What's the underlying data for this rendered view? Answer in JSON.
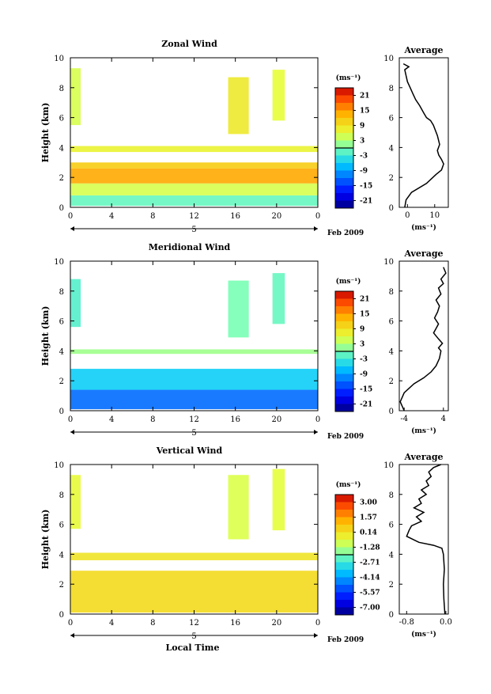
{
  "figure": {
    "date_label": "Feb 2009",
    "x_label": "Local Time",
    "y_label": "Height (km)",
    "unit_label": "(ms⁻¹)",
    "day_label": "5"
  },
  "chart_data": [
    {
      "type": "heatmap",
      "title": "Zonal Wind",
      "xlabel": "",
      "ylabel": "Height (km)",
      "xlim": [
        0,
        24
      ],
      "ylim": [
        0,
        10
      ],
      "x_ticks": [
        "0",
        "4",
        "8",
        "12",
        "16",
        "20",
        "0"
      ],
      "y_ticks": [
        "0",
        "2",
        "4",
        "6",
        "8",
        "10"
      ],
      "colorbar": {
        "unit": "(ms⁻¹)",
        "range": [
          -24,
          24
        ],
        "ticks": [
          "21",
          "15",
          "9",
          "3",
          "-3",
          "-9",
          "-15",
          "-21"
        ]
      },
      "bands": [
        {
          "x0": 0,
          "x1": 24,
          "y0": 0.1,
          "y1": 0.8,
          "value": -1
        },
        {
          "x0": 0,
          "x1": 24,
          "y0": 0.8,
          "y1": 1.6,
          "value": 5
        },
        {
          "x0": 0,
          "x1": 24,
          "y0": 1.6,
          "y1": 2.6,
          "value": 14
        },
        {
          "x0": 0,
          "x1": 24,
          "y0": 2.6,
          "y1": 3.0,
          "value": 11
        },
        {
          "x0": 0,
          "x1": 24,
          "y0": 3.7,
          "y1": 4.1,
          "value": 7
        },
        {
          "x0": 0,
          "x1": 1,
          "y0": 5.5,
          "y1": 9.3,
          "value": 5
        },
        {
          "x0": 15.3,
          "x1": 17.3,
          "y0": 4.9,
          "y1": 8.7,
          "value": 8
        },
        {
          "x0": 19.6,
          "x1": 20.8,
          "y0": 5.8,
          "y1": 9.2,
          "value": 6
        }
      ]
    },
    {
      "type": "heatmap",
      "title": "Meridional Wind",
      "xlabel": "",
      "ylabel": "Height (km)",
      "xlim": [
        0,
        24
      ],
      "ylim": [
        0,
        10
      ],
      "x_ticks": [
        "0",
        "4",
        "8",
        "12",
        "16",
        "20",
        "0"
      ],
      "y_ticks": [
        "0",
        "2",
        "4",
        "6",
        "8",
        "10"
      ],
      "colorbar": {
        "unit": "(ms⁻¹)",
        "range": [
          -24,
          24
        ],
        "ticks": [
          "21",
          "15",
          "9",
          "3",
          "-3",
          "-9",
          "-15",
          "-21"
        ]
      },
      "bands": [
        {
          "x0": 0,
          "x1": 24,
          "y0": 0.1,
          "y1": 1.4,
          "value": -12
        },
        {
          "x0": 0,
          "x1": 24,
          "y0": 1.4,
          "y1": 2.8,
          "value": -6
        },
        {
          "x0": 0,
          "x1": 24,
          "y0": 3.8,
          "y1": 4.1,
          "value": 2
        },
        {
          "x0": 0,
          "x1": 1,
          "y0": 5.6,
          "y1": 8.8,
          "value": -2
        },
        {
          "x0": 15.3,
          "x1": 17.3,
          "y0": 4.9,
          "y1": 8.7,
          "value": 0
        },
        {
          "x0": 19.6,
          "x1": 20.8,
          "y0": 5.8,
          "y1": 9.2,
          "value": -1
        }
      ]
    },
    {
      "type": "heatmap",
      "title": "Vertical Wind",
      "xlabel": "Local Time",
      "ylabel": "Height (km)",
      "xlim": [
        0,
        24
      ],
      "ylim": [
        0,
        10
      ],
      "x_ticks": [
        "0",
        "4",
        "8",
        "12",
        "16",
        "20",
        "0"
      ],
      "y_ticks": [
        "0",
        "2",
        "4",
        "6",
        "8",
        "10"
      ],
      "colorbar": {
        "unit": "(ms⁻¹)",
        "range": [
          -8.5,
          4.5
        ],
        "ticks": [
          "3.00",
          "1.57",
          "0.14",
          "-1.28",
          "-2.71",
          "-4.14",
          "-5.57",
          "-7.00"
        ]
      },
      "bands": [
        {
          "x0": 0,
          "x1": 24,
          "y0": 0.1,
          "y1": 2.9,
          "value": 0.6
        },
        {
          "x0": 0,
          "x1": 24,
          "y0": 3.6,
          "y1": 4.1,
          "value": 0.3
        },
        {
          "x0": 0,
          "x1": 1,
          "y0": 5.7,
          "y1": 9.3,
          "value": -0.3
        },
        {
          "x0": 15.3,
          "x1": 17.3,
          "y0": 5.0,
          "y1": 9.3,
          "value": -0.6
        },
        {
          "x0": 19.6,
          "x1": 20.8,
          "y0": 5.6,
          "y1": 9.7,
          "value": -0.4
        }
      ]
    },
    {
      "type": "line",
      "title": "Average",
      "xlabel": "(ms⁻¹)",
      "ylabel": "",
      "xlim": [
        -3,
        15
      ],
      "ylim": [
        0,
        10
      ],
      "x_ticks": [
        "0",
        "10"
      ],
      "y_ticks": [
        "0",
        "2",
        "4",
        "6",
        "8",
        "10"
      ],
      "x": [
        -1.0,
        -0.5,
        1.5,
        7.0,
        10.5,
        12.5,
        13.3,
        12.5,
        11.5,
        11.0,
        11.8,
        11.0,
        9.5,
        8.5,
        7.0,
        6.0,
        4.5,
        3.0,
        2.0,
        1.0,
        0.0,
        -0.5,
        -1.0,
        0.5,
        -1.5
      ],
      "y": [
        0.0,
        0.5,
        1.0,
        1.6,
        2.2,
        2.5,
        2.9,
        3.2,
        3.5,
        3.8,
        4.2,
        4.8,
        5.5,
        5.8,
        6.0,
        6.3,
        6.8,
        7.2,
        7.6,
        8.0,
        8.4,
        8.8,
        9.2,
        9.4,
        9.6
      ]
    },
    {
      "type": "line",
      "title": "Average",
      "xlabel": "(ms⁻¹)",
      "ylabel": "",
      "xlim": [
        -5,
        5
      ],
      "ylim": [
        0,
        10
      ],
      "x_ticks": [
        "-4",
        "4"
      ],
      "y_ticks": [
        "0",
        "2",
        "4",
        "6",
        "8",
        "10"
      ],
      "x": [
        -4.0,
        -4.8,
        -4.0,
        -2.0,
        0.0,
        1.5,
        2.5,
        3.2,
        3.5,
        3.0,
        3.8,
        3.0,
        2.0,
        2.5,
        3.0,
        2.2,
        2.8,
        3.2,
        2.5,
        3.5,
        3.0,
        4.0,
        3.5,
        4.5,
        4.0
      ],
      "y": [
        0.0,
        0.6,
        1.2,
        1.8,
        2.2,
        2.6,
        3.0,
        3.5,
        4.0,
        4.2,
        4.5,
        4.8,
        5.2,
        5.5,
        5.8,
        6.2,
        6.6,
        7.0,
        7.4,
        7.8,
        8.2,
        8.5,
        8.8,
        9.2,
        9.6
      ]
    },
    {
      "type": "line",
      "title": "Average",
      "xlabel": "(ms⁻¹)",
      "ylabel": "",
      "xlim": [
        -0.95,
        0.05
      ],
      "ylim": [
        0,
        10
      ],
      "x_ticks": [
        "-0.8",
        "0.0"
      ],
      "y_ticks": [
        "0",
        "2",
        "4",
        "6",
        "8",
        "10"
      ],
      "x": [
        -0.02,
        -0.04,
        -0.05,
        -0.03,
        -0.05,
        -0.08,
        -0.25,
        -0.55,
        -0.8,
        -0.75,
        -0.7,
        -0.5,
        -0.6,
        -0.45,
        -0.65,
        -0.5,
        -0.55,
        -0.4,
        -0.5,
        -0.35,
        -0.4,
        -0.3,
        -0.35,
        -0.25,
        -0.1
      ],
      "y": [
        0.0,
        1.0,
        2.0,
        3.0,
        4.0,
        4.4,
        4.6,
        4.8,
        5.2,
        5.6,
        5.9,
        6.2,
        6.5,
        6.8,
        7.1,
        7.4,
        7.7,
        8.0,
        8.3,
        8.6,
        8.9,
        9.2,
        9.5,
        9.8,
        10.0
      ]
    }
  ]
}
